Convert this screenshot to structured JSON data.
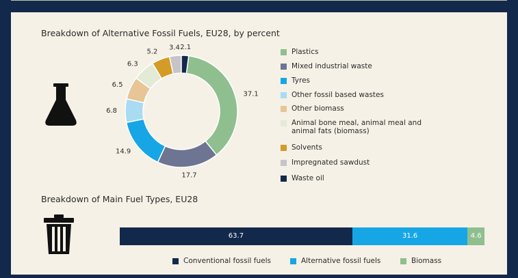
{
  "chart_data": [
    {
      "type": "pie",
      "title": "Breakdown of Alternative Fossil Fuels, EU28, by percent",
      "categories": [
        "Plastics",
        "Mixed industrial waste",
        "Tyres",
        "Other fossil based wastes",
        "Other biomass",
        "Animal bone meal, animal meal and animal fats (biomass)",
        "Solvents",
        "Impregnated sawdust",
        "Waste oil"
      ],
      "values": [
        37.1,
        17.7,
        14.9,
        6.8,
        6.5,
        6.3,
        5.2,
        3.4,
        2.1
      ],
      "colors": [
        "#8fbf8f",
        "#6e7592",
        "#16a6e6",
        "#a9dbf3",
        "#e7c595",
        "#e3ead6",
        "#d49b26",
        "#c6c4c8",
        "#13294b"
      ],
      "legend": "right"
    },
    {
      "type": "bar",
      "orientation": "horizontal-stacked",
      "title": "Breakdown of Main Fuel Types, EU28",
      "categories": [
        "Conventional fossil fuels",
        "Alternative fossil fuels",
        "Biomass"
      ],
      "values": [
        63.7,
        31.6,
        4.6
      ],
      "colors": [
        "#13294b",
        "#16a6e6",
        "#8fbf8f"
      ],
      "legend": "bottom"
    }
  ]
}
